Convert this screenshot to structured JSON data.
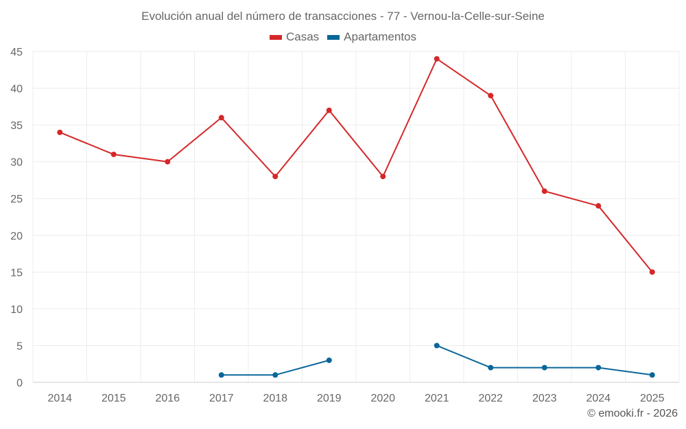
{
  "chart_data": {
    "type": "line",
    "title": "Evolución anual del número de transacciones - 77 - Vernou-la-Celle-sur-Seine",
    "categories": [
      "2014",
      "2015",
      "2016",
      "2017",
      "2018",
      "2019",
      "2020",
      "2021",
      "2022",
      "2023",
      "2024",
      "2025"
    ],
    "ylim": [
      0,
      45
    ],
    "yticks": [
      0,
      5,
      10,
      15,
      20,
      25,
      30,
      35,
      40,
      45
    ],
    "grid": true,
    "legend_position": "top-center",
    "xlabel": "",
    "ylabel": "",
    "series": [
      {
        "name": "Casas",
        "color": "#d62728",
        "values": [
          34,
          31,
          30,
          36,
          28,
          37,
          28,
          44,
          39,
          26,
          24,
          15
        ]
      },
      {
        "name": "Apartamentos",
        "color": "#0b6699",
        "values": [
          null,
          null,
          null,
          1,
          1,
          3,
          null,
          5,
          2,
          2,
          2,
          1
        ]
      }
    ]
  },
  "credit": "© emooki.fr - 2026"
}
